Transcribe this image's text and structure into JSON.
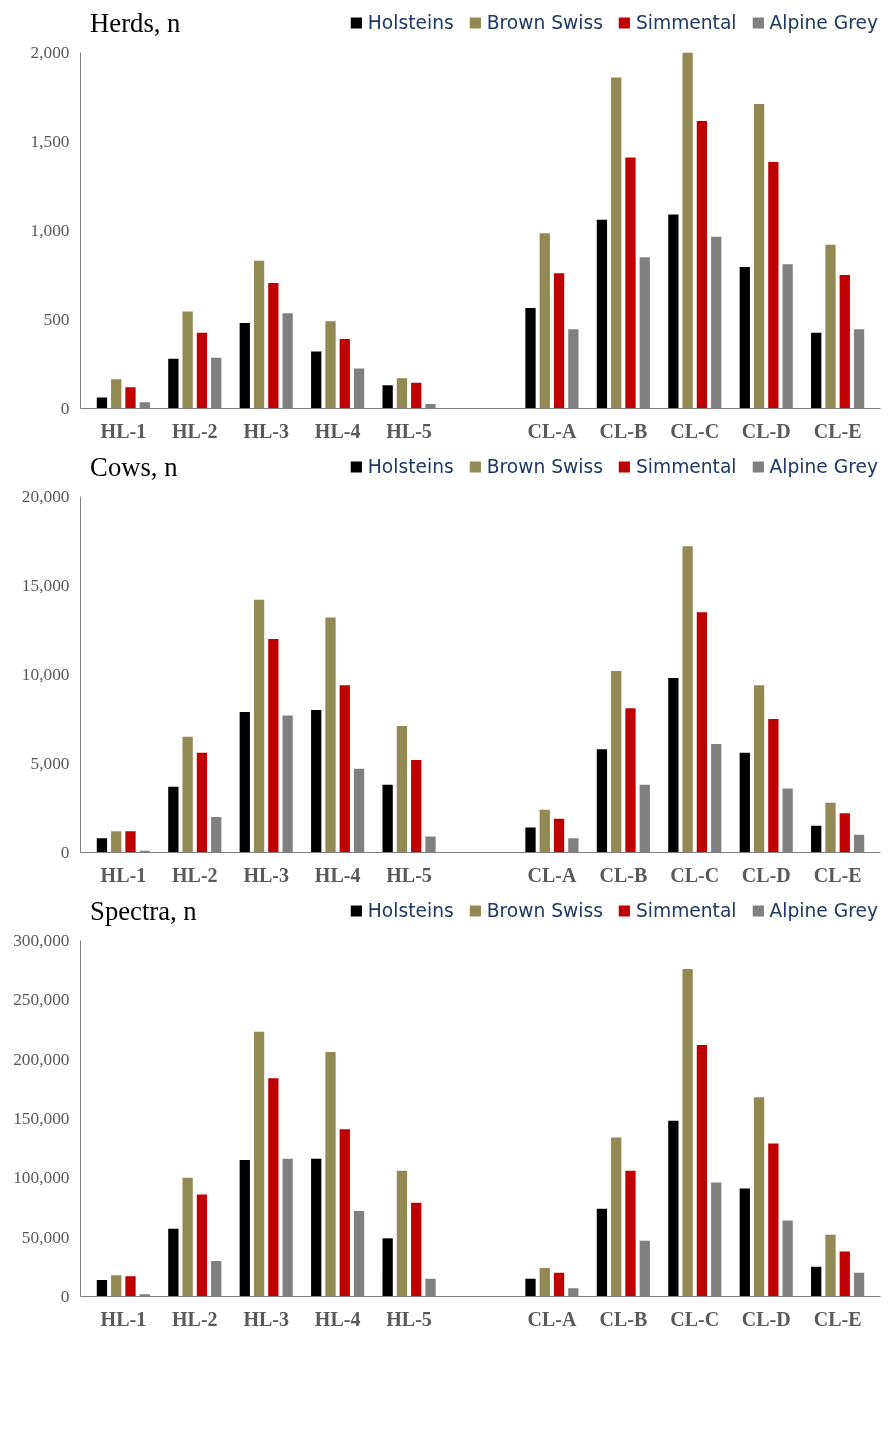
{
  "chart_data": [
    {
      "type": "bar",
      "title": "Herds, n",
      "categories": [
        "HL-1",
        "HL-2",
        "HL-3",
        "HL-4",
        "HL-5",
        null,
        "CL-A",
        "CL-B",
        "CL-C",
        "CL-D",
        "CL-E"
      ],
      "series": [
        {
          "name": "Holsteins",
          "color": "#000000",
          "values": [
            62,
            280,
            480,
            320,
            130,
            null,
            565,
            1060,
            1090,
            795,
            425
          ]
        },
        {
          "name": "Brown Swiss",
          "color": "#938953",
          "values": [
            165,
            545,
            830,
            490,
            170,
            null,
            985,
            1860,
            2000,
            1710,
            920
          ]
        },
        {
          "name": "Simmental",
          "color": "#c00000",
          "values": [
            120,
            425,
            705,
            390,
            145,
            null,
            760,
            1410,
            1615,
            1385,
            750
          ]
        },
        {
          "name": "Alpine Grey",
          "color": "#808080",
          "values": [
            35,
            285,
            535,
            225,
            25,
            null,
            445,
            850,
            965,
            810,
            445
          ]
        }
      ],
      "ylim": [
        0,
        2000
      ],
      "yticks": [
        0,
        {
          "value": 500,
          "label": "500"
        },
        {
          "value": 1000,
          "label": "1,000"
        },
        {
          "value": 1500,
          "label": "1,500"
        },
        {
          "value": 2000,
          "label": "2,000"
        }
      ],
      "legend": "top",
      "grid": false
    },
    {
      "type": "bar",
      "title": "Cows, n",
      "categories": [
        "HL-1",
        "HL-2",
        "HL-3",
        "HL-4",
        "HL-5",
        null,
        "CL-A",
        "CL-B",
        "CL-C",
        "CL-D",
        "CL-E"
      ],
      "series": [
        {
          "name": "Holsteins",
          "color": "#000000",
          "values": [
            800,
            3700,
            7900,
            8000,
            3800,
            null,
            1400,
            5800,
            9800,
            5600,
            1500
          ]
        },
        {
          "name": "Brown Swiss",
          "color": "#938953",
          "values": [
            1200,
            6500,
            14200,
            13200,
            7100,
            null,
            2400,
            10200,
            17200,
            9400,
            2800
          ]
        },
        {
          "name": "Simmental",
          "color": "#c00000",
          "values": [
            1200,
            5600,
            12000,
            9400,
            5200,
            null,
            1900,
            8100,
            13500,
            7500,
            2200
          ]
        },
        {
          "name": "Alpine Grey",
          "color": "#808080",
          "values": [
            100,
            2000,
            7700,
            4700,
            900,
            null,
            800,
            3800,
            6100,
            3600,
            1000
          ]
        }
      ],
      "ylim": [
        0,
        20000
      ],
      "yticks": [
        0,
        {
          "value": 5000,
          "label": "5,000"
        },
        {
          "value": 10000,
          "label": "10,000"
        },
        {
          "value": 15000,
          "label": "15,000"
        },
        {
          "value": 20000,
          "label": "20,000"
        }
      ],
      "legend": "top",
      "grid": false
    },
    {
      "type": "bar",
      "title": "Spectra, n",
      "categories": [
        "HL-1",
        "HL-2",
        "HL-3",
        "HL-4",
        "HL-5",
        null,
        "CL-A",
        "CL-B",
        "CL-C",
        "CL-D",
        "CL-E"
      ],
      "series": [
        {
          "name": "Holsteins",
          "color": "#000000",
          "values": [
            14000,
            57000,
            115000,
            116000,
            49000,
            null,
            15000,
            74000,
            148000,
            91000,
            25000
          ]
        },
        {
          "name": "Brown Swiss",
          "color": "#938953",
          "values": [
            18000,
            100000,
            223000,
            206000,
            106000,
            null,
            24000,
            134000,
            276000,
            168000,
            52000
          ]
        },
        {
          "name": "Simmental",
          "color": "#c00000",
          "values": [
            17000,
            86000,
            184000,
            141000,
            79000,
            null,
            20000,
            106000,
            212000,
            129000,
            38000
          ]
        },
        {
          "name": "Alpine Grey",
          "color": "#808080",
          "values": [
            2000,
            30000,
            116000,
            72000,
            15000,
            null,
            7000,
            47000,
            96000,
            64000,
            20000
          ]
        }
      ],
      "ylim": [
        0,
        300000
      ],
      "yticks": [
        0,
        {
          "value": 50000,
          "label": "50,000"
        },
        {
          "value": 100000,
          "label": "100,000"
        },
        {
          "value": 150000,
          "label": "150,000"
        },
        {
          "value": 200000,
          "label": "200,000"
        },
        {
          "value": 250000,
          "label": "250,000"
        },
        {
          "value": 300000,
          "label": "300,000"
        }
      ],
      "legend": "top",
      "grid": false
    }
  ]
}
